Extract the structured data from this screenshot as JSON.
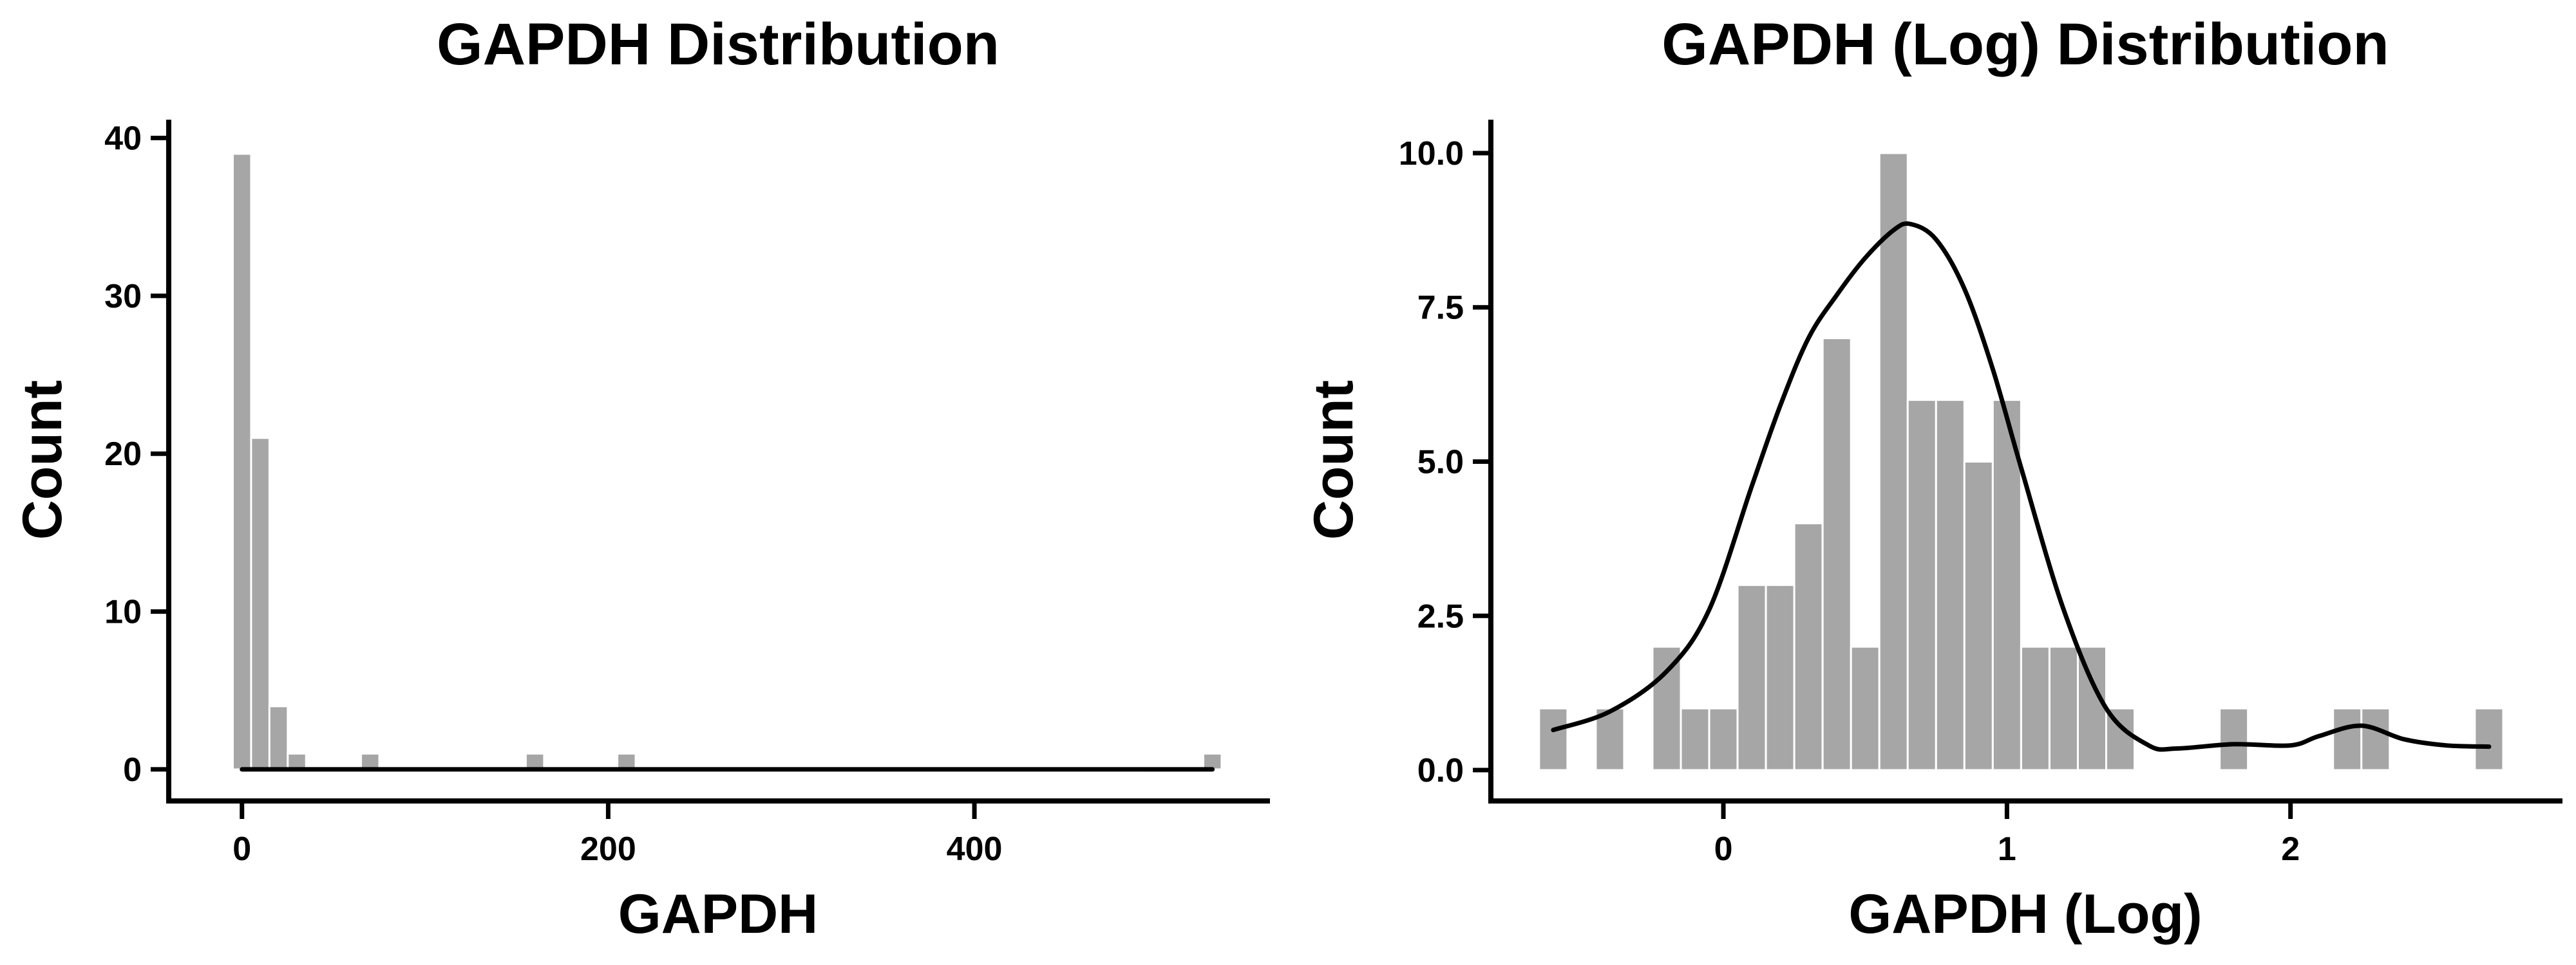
{
  "colors": {
    "bar": "#a6a6a6",
    "line": "#000000",
    "axis": "#000000",
    "background": "#ffffff"
  },
  "chart_data": [
    {
      "type": "bar",
      "subtype": "histogram",
      "title": "GAPDH Distribution",
      "xlabel": "GAPDH",
      "ylabel": "Count",
      "xlim": [
        -40,
        560
      ],
      "ylim": [
        -2,
        41
      ],
      "xticks": [
        0,
        200,
        400
      ],
      "yticks": [
        0,
        10,
        20,
        30,
        40
      ],
      "grid": false,
      "bin_width": 10,
      "bins": [
        {
          "x0": -5,
          "x1": 5,
          "count": 39
        },
        {
          "x0": 5,
          "x1": 15,
          "count": 21
        },
        {
          "x0": 15,
          "x1": 25,
          "count": 4
        },
        {
          "x0": 25,
          "x1": 35,
          "count": 1
        },
        {
          "x0": 65,
          "x1": 75,
          "count": 1
        },
        {
          "x0": 155,
          "x1": 165,
          "count": 1
        },
        {
          "x0": 205,
          "x1": 215,
          "count": 1
        },
        {
          "x0": 525,
          "x1": 535,
          "count": 1
        }
      ],
      "kde": {
        "x": [
          0,
          530
        ],
        "y": [
          0,
          0
        ]
      }
    },
    {
      "type": "bar",
      "subtype": "histogram",
      "title": "GAPDH (Log) Distribution",
      "xlabel": "GAPDH (Log)",
      "ylabel": "Count",
      "xlim": [
        -0.82,
        2.95
      ],
      "ylim": [
        -0.5,
        10.5
      ],
      "xticks": [
        0,
        1,
        2
      ],
      "yticks": [
        0.0,
        2.5,
        5.0,
        7.5,
        10.0
      ],
      "ytick_labels": [
        "0.0",
        "2.5",
        "5.0",
        "7.5",
        "10.0"
      ],
      "grid": false,
      "bin_width": 0.1,
      "bins": [
        {
          "x0": -0.65,
          "x1": -0.55,
          "count": 1
        },
        {
          "x0": -0.45,
          "x1": -0.35,
          "count": 1
        },
        {
          "x0": -0.25,
          "x1": -0.15,
          "count": 2
        },
        {
          "x0": -0.15,
          "x1": -0.05,
          "count": 1
        },
        {
          "x0": -0.05,
          "x1": 0.05,
          "count": 1
        },
        {
          "x0": 0.05,
          "x1": 0.15,
          "count": 3
        },
        {
          "x0": 0.15,
          "x1": 0.25,
          "count": 3
        },
        {
          "x0": 0.25,
          "x1": 0.35,
          "count": 4
        },
        {
          "x0": 0.35,
          "x1": 0.45,
          "count": 7
        },
        {
          "x0": 0.45,
          "x1": 0.55,
          "count": 2
        },
        {
          "x0": 0.55,
          "x1": 0.65,
          "count": 10
        },
        {
          "x0": 0.65,
          "x1": 0.75,
          "count": 6
        },
        {
          "x0": 0.75,
          "x1": 0.85,
          "count": 6
        },
        {
          "x0": 0.85,
          "x1": 0.95,
          "count": 5
        },
        {
          "x0": 0.95,
          "x1": 1.05,
          "count": 6
        },
        {
          "x0": 1.05,
          "x1": 1.15,
          "count": 2
        },
        {
          "x0": 1.15,
          "x1": 1.25,
          "count": 2
        },
        {
          "x0": 1.25,
          "x1": 1.35,
          "count": 2
        },
        {
          "x0": 1.35,
          "x1": 1.45,
          "count": 1
        },
        {
          "x0": 1.75,
          "x1": 1.85,
          "count": 1
        },
        {
          "x0": 2.15,
          "x1": 2.25,
          "count": 1
        },
        {
          "x0": 2.25,
          "x1": 2.35,
          "count": 1
        },
        {
          "x0": 2.65,
          "x1": 2.75,
          "count": 1
        }
      ],
      "kde": {
        "x": [
          -0.6,
          -0.4,
          -0.2,
          -0.05,
          0.1,
          0.2,
          0.3,
          0.4,
          0.5,
          0.6,
          0.66,
          0.75,
          0.85,
          0.95,
          1.05,
          1.2,
          1.35,
          1.5,
          1.6,
          1.8,
          2.0,
          2.1,
          2.25,
          2.4,
          2.55,
          2.7
        ],
        "y": [
          0.65,
          0.95,
          1.6,
          2.6,
          4.6,
          5.9,
          7.0,
          7.7,
          8.3,
          8.75,
          8.85,
          8.6,
          7.8,
          6.5,
          4.9,
          2.6,
          1.0,
          0.4,
          0.35,
          0.42,
          0.4,
          0.55,
          0.72,
          0.5,
          0.4,
          0.38
        ]
      }
    }
  ]
}
